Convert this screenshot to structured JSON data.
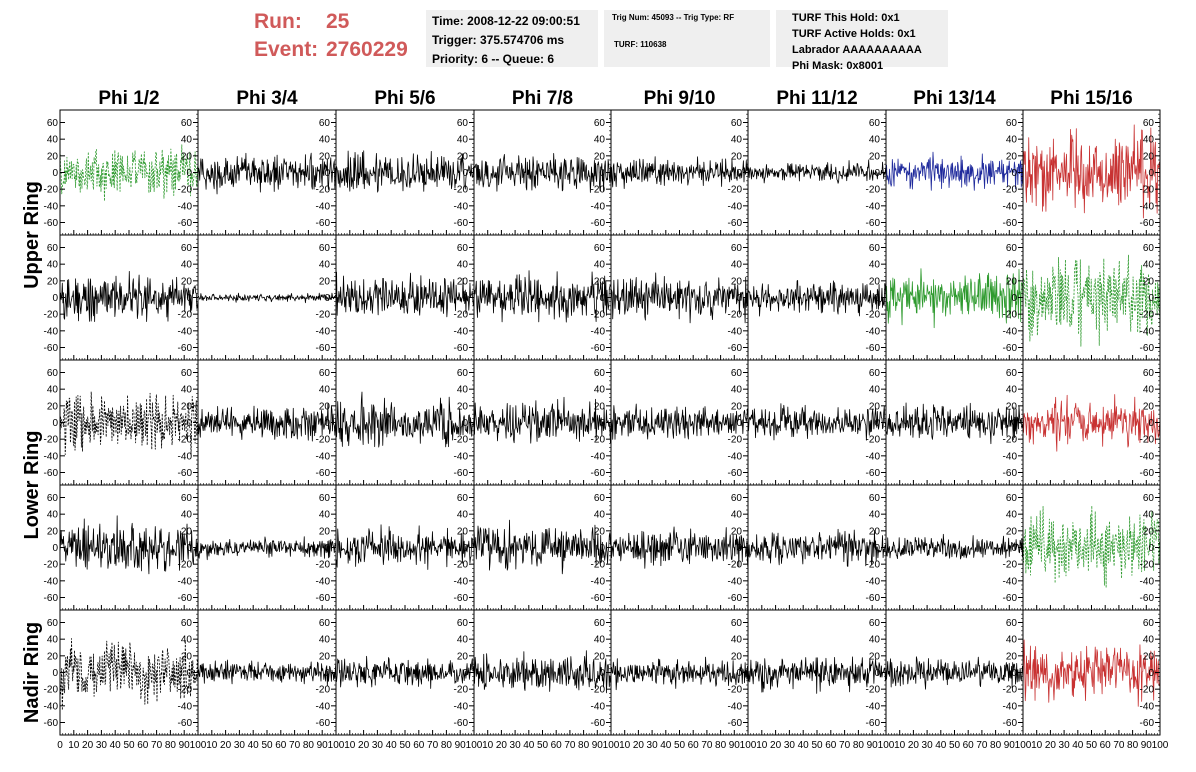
{
  "header": {
    "run_label": "Run:",
    "run_value": "25",
    "event_label": "Event:",
    "event_value": "2760229",
    "time": "Time: 2008-12-22 09:00:51",
    "trigger": "Trigger: 375.574706 ms",
    "priority": "Priority: 6 -- Queue: 6",
    "trig_num": "Trig Num: 45093 -- Trig Type: RF",
    "turf": "TURF: 110638",
    "turf_this_hold": "TURF This Hold: 0x1",
    "turf_active_holds": "TURF Active Holds: 0x1",
    "labrador": "Labrador AAAAAAAAAA",
    "phi_mask": "Phi Mask: 0x8001"
  },
  "colors": {
    "header_red": "#d05a5a",
    "box_gray": "#efefef",
    "black": "#000000",
    "green": "#2e9a2e",
    "red": "#c83232",
    "blue": "#1f2a9c"
  },
  "chart_data": {
    "type": "line",
    "columns": [
      "Phi 1/2",
      "Phi 3/4",
      "Phi 5/6",
      "Phi 7/8",
      "Phi 9/10",
      "Phi 11/12",
      "Phi 13/14",
      "Phi 15/16"
    ],
    "ring_labels": [
      {
        "name": "Upper Ring",
        "rows": [
          0,
          1
        ]
      },
      {
        "name": "Lower Ring",
        "rows": [
          2,
          3
        ]
      },
      {
        "name": "Nadir Ring",
        "rows": [
          4
        ]
      }
    ],
    "ylim": [
      -75,
      75
    ],
    "yticks": [
      -60,
      -40,
      -20,
      0,
      20,
      40,
      60
    ],
    "xlim": [
      0,
      100
    ],
    "xticks": [
      0,
      10,
      20,
      30,
      40,
      50,
      60,
      70,
      80,
      90,
      100
    ],
    "x_tick_text": "0 102030405060708090100",
    "panels": [
      [
        {
          "amp": 18,
          "color": "green",
          "dashed": true
        },
        {
          "amp": 13,
          "color": "black",
          "dashed": false
        },
        {
          "amp": 15,
          "color": "black",
          "dashed": false
        },
        {
          "amp": 14,
          "color": "black",
          "dashed": false
        },
        {
          "amp": 10,
          "color": "black",
          "dashed": false
        },
        {
          "amp": 7,
          "color": "black",
          "dashed": false
        },
        {
          "amp": 12,
          "color": "blue",
          "dashed": false
        },
        {
          "amp": 27,
          "color": "red",
          "dashed": false
        }
      ],
      [
        {
          "amp": 16,
          "color": "black",
          "dashed": false
        },
        {
          "amp": 3,
          "color": "black",
          "dashed": false
        },
        {
          "amp": 15,
          "color": "black",
          "dashed": false
        },
        {
          "amp": 16,
          "color": "black",
          "dashed": false
        },
        {
          "amp": 15,
          "color": "black",
          "dashed": false
        },
        {
          "amp": 12,
          "color": "black",
          "dashed": false
        },
        {
          "amp": 18,
          "color": "green",
          "dashed": false
        },
        {
          "amp": 28,
          "color": "green",
          "dashed": true
        }
      ],
      [
        {
          "amp": 22,
          "color": "black",
          "dashed": true
        },
        {
          "amp": 12,
          "color": "black",
          "dashed": false
        },
        {
          "amp": 16,
          "color": "black",
          "dashed": false
        },
        {
          "amp": 14,
          "color": "black",
          "dashed": false
        },
        {
          "amp": 12,
          "color": "black",
          "dashed": false
        },
        {
          "amp": 11,
          "color": "black",
          "dashed": false
        },
        {
          "amp": 14,
          "color": "black",
          "dashed": false
        },
        {
          "amp": 16,
          "color": "red",
          "dashed": false
        }
      ],
      [
        {
          "amp": 18,
          "color": "black",
          "dashed": false
        },
        {
          "amp": 7,
          "color": "black",
          "dashed": false
        },
        {
          "amp": 14,
          "color": "black",
          "dashed": false
        },
        {
          "amp": 16,
          "color": "black",
          "dashed": false
        },
        {
          "amp": 13,
          "color": "black",
          "dashed": false
        },
        {
          "amp": 12,
          "color": "black",
          "dashed": false
        },
        {
          "amp": 9,
          "color": "black",
          "dashed": false
        },
        {
          "amp": 24,
          "color": "green",
          "dashed": true
        }
      ],
      [
        {
          "amp": 22,
          "color": "black",
          "dashed": true
        },
        {
          "amp": 8,
          "color": "black",
          "dashed": false
        },
        {
          "amp": 10,
          "color": "black",
          "dashed": false
        },
        {
          "amp": 13,
          "color": "black",
          "dashed": false
        },
        {
          "amp": 10,
          "color": "black",
          "dashed": false
        },
        {
          "amp": 12,
          "color": "black",
          "dashed": false
        },
        {
          "amp": 10,
          "color": "black",
          "dashed": false
        },
        {
          "amp": 20,
          "color": "red",
          "dashed": false
        }
      ]
    ]
  }
}
